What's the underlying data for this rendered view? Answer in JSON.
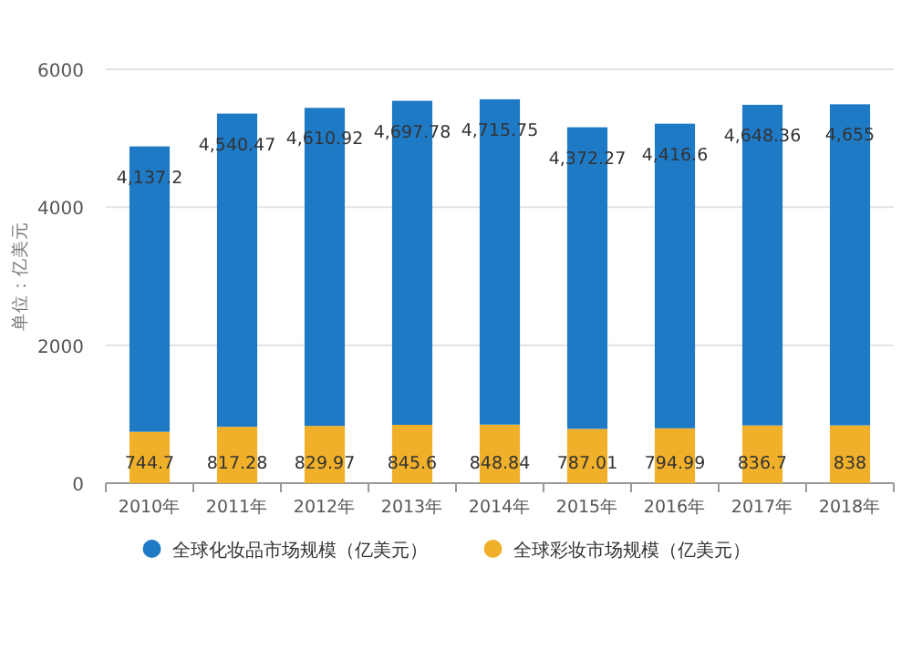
{
  "chart_data": {
    "type": "bar",
    "stacked": true,
    "ylabel": "单位：亿美元",
    "categories": [
      "2010年",
      "2011年",
      "2012年",
      "2013年",
      "2014年",
      "2015年",
      "2016年",
      "2017年",
      "2018年"
    ],
    "series": [
      {
        "name": "全球彩妆市场规模（亿美元）",
        "color": "#f0b02a",
        "values": [
          744.7,
          817.28,
          829.97,
          845.6,
          848.84,
          787.01,
          794.99,
          836.7,
          838
        ],
        "value_labels": [
          "744.7",
          "817.28",
          "829.97",
          "845.6",
          "848.84",
          "787.01",
          "794.99",
          "836.7",
          "838"
        ]
      },
      {
        "name": "全球化妆品市场规模（亿美元）",
        "color": "#1f7ac6",
        "values": [
          4137.2,
          4540.47,
          4610.92,
          4697.78,
          4715.75,
          4372.27,
          4416.6,
          4648.36,
          4655
        ],
        "value_labels": [
          "4,137.2",
          "4,540.47",
          "4,610.92",
          "4,697.78",
          "4,715.75",
          "4,372.27",
          "4,416.6",
          "4,648.36",
          "4,655"
        ]
      }
    ],
    "ylim": [
      0,
      6000
    ],
    "yticks": [
      0,
      2000,
      4000,
      6000
    ],
    "grid": "y",
    "legend": "bottom"
  }
}
